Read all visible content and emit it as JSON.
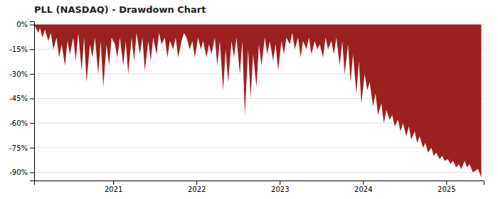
{
  "chart_data": {
    "type": "area",
    "title": "PLL (NASDAQ) - Drawdown Chart",
    "x": [
      2020.05,
      2020.1,
      2020.12,
      2020.15,
      2020.18,
      2020.22,
      2020.25,
      2020.28,
      2020.32,
      2020.35,
      2020.38,
      2020.42,
      2020.45,
      2020.48,
      2020.52,
      2020.55,
      2020.58,
      2020.62,
      2020.65,
      2020.68,
      2020.72,
      2020.75,
      2020.78,
      2020.82,
      2020.85,
      2020.88,
      2020.92,
      2020.95,
      2020.98,
      2021.02,
      2021.05,
      2021.08,
      2021.12,
      2021.15,
      2021.18,
      2021.22,
      2021.25,
      2021.28,
      2021.32,
      2021.35,
      2021.38,
      2021.42,
      2021.45,
      2021.48,
      2021.52,
      2021.55,
      2021.58,
      2021.62,
      2021.65,
      2021.68,
      2021.72,
      2021.75,
      2021.78,
      2021.82,
      2021.85,
      2021.88,
      2021.92,
      2021.95,
      2021.98,
      2022.02,
      2022.05,
      2022.08,
      2022.12,
      2022.15,
      2022.18,
      2022.22,
      2022.25,
      2022.28,
      2022.32,
      2022.35,
      2022.38,
      2022.42,
      2022.45,
      2022.48,
      2022.52,
      2022.55,
      2022.58,
      2022.62,
      2022.65,
      2022.68,
      2022.72,
      2022.75,
      2022.78,
      2022.82,
      2022.85,
      2022.88,
      2022.92,
      2022.95,
      2022.98,
      2023.02,
      2023.05,
      2023.08,
      2023.12,
      2023.15,
      2023.18,
      2023.22,
      2023.25,
      2023.28,
      2023.32,
      2023.35,
      2023.38,
      2023.42,
      2023.45,
      2023.48,
      2023.52,
      2023.55,
      2023.58,
      2023.62,
      2023.65,
      2023.68,
      2023.72,
      2023.75,
      2023.78,
      2023.82,
      2023.85,
      2023.88,
      2023.92,
      2023.95,
      2023.98,
      2024.02,
      2024.05,
      2024.08,
      2024.12,
      2024.15,
      2024.18,
      2024.22,
      2024.25,
      2024.28,
      2024.32,
      2024.35,
      2024.38,
      2024.42,
      2024.45,
      2024.48,
      2024.52,
      2024.55,
      2024.58,
      2024.62,
      2024.65,
      2024.68,
      2024.72,
      2024.75,
      2024.78,
      2024.82,
      2024.85,
      2024.88,
      2024.92,
      2024.95,
      2024.98,
      2025.02,
      2025.05,
      2025.08,
      2025.12,
      2025.15,
      2025.18,
      2025.22,
      2025.25,
      2025.28,
      2025.32,
      2025.38,
      2025.42
    ],
    "values": [
      0.0,
      -5.0,
      -2.0,
      -8.0,
      -3.0,
      -10.0,
      -5.0,
      -15.0,
      -8.0,
      -20.0,
      -12.0,
      -25.0,
      -10.0,
      -18.0,
      -8.0,
      -22.0,
      -5.0,
      -28.0,
      -8.0,
      -35.0,
      -12.0,
      -20.0,
      -8.0,
      -30.0,
      -10.0,
      -38.0,
      -12.0,
      -25.0,
      -8.0,
      -12.0,
      -20.0,
      -8.0,
      -25.0,
      -10.0,
      -30.0,
      -8.0,
      -22.0,
      -5.0,
      -18.0,
      -8.0,
      -28.0,
      -10.0,
      -22.0,
      -8.0,
      -18.0,
      -5.0,
      -12.0,
      -8.0,
      -20.0,
      -10.0,
      -15.0,
      -8.0,
      -20.0,
      -10.0,
      -5.0,
      -8.0,
      -15.0,
      -10.0,
      -20.0,
      -8.0,
      -15.0,
      -10.0,
      -20.0,
      -12.0,
      -18.0,
      -8.0,
      -25.0,
      -10.0,
      -40.0,
      -15.0,
      -35.0,
      -10.0,
      -20.0,
      -8.0,
      -30.0,
      -10.0,
      -55.0,
      -15.0,
      -45.0,
      -18.0,
      -38.0,
      -12.0,
      -25.0,
      -8.0,
      -18.0,
      -10.0,
      -22.0,
      -12.0,
      -28.0,
      -10.0,
      -18.0,
      -8.0,
      -12.0,
      -5.0,
      -15.0,
      -8.0,
      -20.0,
      -10.0,
      -15.0,
      -8.0,
      -18.0,
      -10.0,
      -15.0,
      -12.0,
      -20.0,
      -8.0,
      -15.0,
      -10.0,
      -18.0,
      -8.0,
      -25.0,
      -10.0,
      -30.0,
      -12.0,
      -35.0,
      -18.0,
      -42.0,
      -22.0,
      -48.0,
      -30.0,
      -40.0,
      -35.0,
      -50.0,
      -42.0,
      -55.0,
      -48.0,
      -60.0,
      -52.0,
      -58.0,
      -55.0,
      -62.0,
      -58.0,
      -65.0,
      -60.0,
      -68.0,
      -62.0,
      -70.0,
      -65.0,
      -72.0,
      -68.0,
      -75.0,
      -72.0,
      -78.0,
      -75.0,
      -80.0,
      -78.0,
      -82.0,
      -80.0,
      -83.0,
      -82.0,
      -85.0,
      -83.0,
      -87.0,
      -85.0,
      -88.0,
      -83.0,
      -87.0,
      -85.0,
      -90.0,
      -88.0,
      -93.0
    ],
    "color": "#9B2020",
    "xlim": [
      2020.05,
      2025.45
    ],
    "ylim": [
      -95,
      2
    ],
    "xticks": [
      2021,
      2022,
      2023,
      2024,
      2025
    ],
    "yticks": [
      {
        "value": 0,
        "label": "0%"
      },
      {
        "value": -15,
        "label": "-15%"
      },
      {
        "value": -30,
        "label": "-30%"
      },
      {
        "value": -45,
        "label": "-45%"
      },
      {
        "value": -60,
        "label": "-60%"
      },
      {
        "value": -75,
        "label": "-75%"
      },
      {
        "value": -90,
        "label": "-90%"
      }
    ],
    "grid": true
  }
}
